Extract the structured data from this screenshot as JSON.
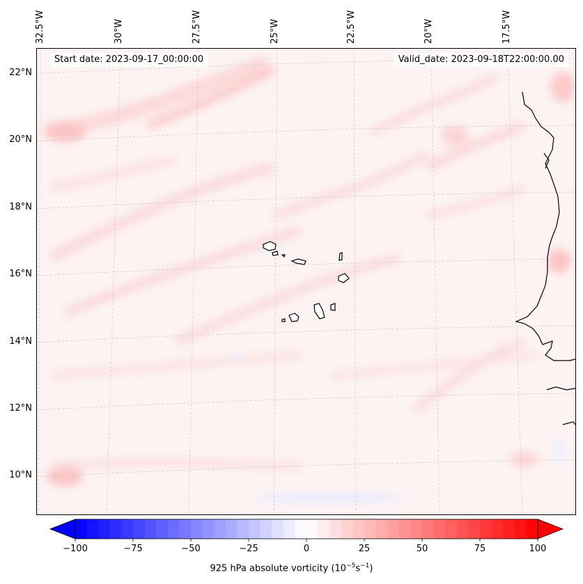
{
  "header": {
    "start_date": "Start date: 2023-09-17_00:00:00",
    "valid_date": "Valid_date: 2023-09-18T22:00:00.00"
  },
  "axes": {
    "lon_labels": [
      "32.5°W",
      "30°W",
      "27.5°W",
      "25°W",
      "22.5°W",
      "20°W",
      "17.5°W"
    ],
    "lat_labels": [
      "22°N",
      "20°N",
      "18°N",
      "16°N",
      "14°N",
      "12°N",
      "10°N"
    ],
    "gridlines": "dashed"
  },
  "colorbar": {
    "ticks": [
      "−100",
      "−75",
      "−50",
      "−25",
      "0",
      "25",
      "50",
      "75",
      "100"
    ],
    "min": -100,
    "max": 100,
    "levels": 41,
    "extend": "both",
    "colormap": "bwr",
    "label_prefix": "925 hPa absolute vorticity (10",
    "label_exp1": "−5",
    "label_mid": "s",
    "label_exp2": "−1",
    "label_suffix": ")"
  },
  "colors": {
    "background_tint": "#fdf3f3",
    "light_red": "#fddede",
    "mid_red": "#fbc9c9",
    "light_blue": "#eef0ff",
    "coastline": "#000000"
  }
}
